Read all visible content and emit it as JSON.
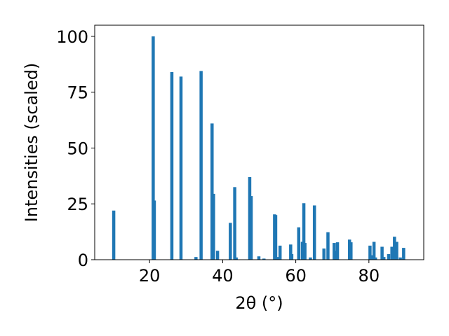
{
  "chart_data": {
    "type": "bar",
    "title": "",
    "xlabel": "2θ (°)",
    "ylabel": "Intensities (scaled)",
    "xlim": [
      5,
      95
    ],
    "ylim": [
      0,
      105
    ],
    "xticks": [
      20,
      40,
      60,
      80
    ],
    "yticks": [
      0,
      25,
      50,
      75,
      100
    ],
    "grid": false,
    "bar_color": "#1f77b4",
    "x": [
      10.2,
      21.0,
      21.3,
      26.1,
      28.6,
      32.7,
      34.1,
      37.1,
      37.5,
      38.6,
      42.1,
      43.3,
      43.7,
      47.4,
      47.8,
      49.9,
      51.3,
      54.2,
      54.5,
      55.2,
      55.7,
      58.6,
      58.9,
      60.8,
      61.8,
      62.2,
      62.5,
      64.0,
      65.1,
      67.7,
      68.8,
      70.5,
      70.9,
      71.4,
      74.7,
      75.1,
      80.3,
      80.7,
      81.4,
      81.8,
      83.6,
      84.1,
      85.4,
      86.3,
      87.0,
      87.6,
      88.6,
      89.5
    ],
    "values": [
      22,
      100,
      26.5,
      84,
      82,
      1.2,
      84.5,
      61,
      29.5,
      4,
      16.5,
      32.5,
      1.0,
      37,
      28.5,
      1.5,
      0.5,
      20.3,
      20,
      1.2,
      6.3,
      6.8,
      2.5,
      14.5,
      8,
      25.3,
      7.5,
      1.0,
      24.3,
      5,
      12.3,
      7.5,
      4,
      7.8,
      9,
      7.8,
      6.3,
      2,
      8,
      1.0,
      5.8,
      1.2,
      2.5,
      5.8,
      10.3,
      8,
      1.0,
      5.3
    ]
  }
}
